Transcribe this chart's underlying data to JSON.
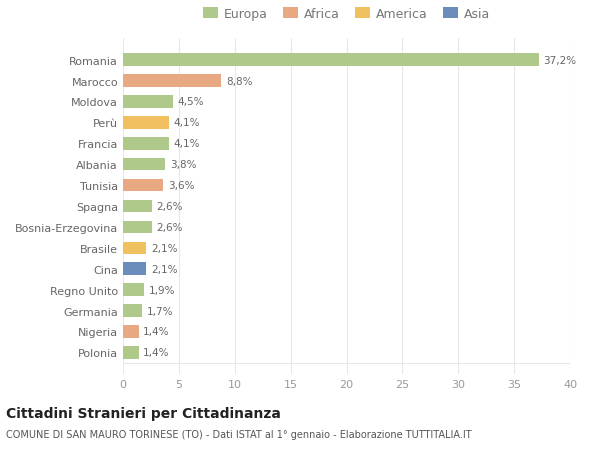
{
  "countries": [
    "Romania",
    "Marocco",
    "Moldova",
    "Perù",
    "Francia",
    "Albania",
    "Tunisia",
    "Spagna",
    "Bosnia-Erzegovina",
    "Brasile",
    "Cina",
    "Regno Unito",
    "Germania",
    "Nigeria",
    "Polonia"
  ],
  "values": [
    37.2,
    8.8,
    4.5,
    4.1,
    4.1,
    3.8,
    3.6,
    2.6,
    2.6,
    2.1,
    2.1,
    1.9,
    1.7,
    1.4,
    1.4
  ],
  "labels": [
    "37,2%",
    "8,8%",
    "4,5%",
    "4,1%",
    "4,1%",
    "3,8%",
    "3,6%",
    "2,6%",
    "2,6%",
    "2,1%",
    "2,1%",
    "1,9%",
    "1,7%",
    "1,4%",
    "1,4%"
  ],
  "categories": [
    "Europa",
    "Africa",
    "America",
    "Asia"
  ],
  "continent": [
    "Europa",
    "Africa",
    "Europa",
    "America",
    "Europa",
    "Europa",
    "Africa",
    "Europa",
    "Europa",
    "America",
    "Asia",
    "Europa",
    "Europa",
    "Africa",
    "Europa"
  ],
  "colors": {
    "Europa": "#aec98a",
    "Africa": "#e8a882",
    "America": "#f0c060",
    "Asia": "#6b8cba"
  },
  "title": "Cittadini Stranieri per Cittadinanza",
  "subtitle": "COMUNE DI SAN MAURO TORINESE (TO) - Dati ISTAT al 1° gennaio - Elaborazione TUTTITALIA.IT",
  "xlim": [
    0,
    40
  ],
  "xticks": [
    0,
    5,
    10,
    15,
    20,
    25,
    30,
    35,
    40
  ],
  "background_color": "#ffffff",
  "grid_color": "#e8e8e8"
}
